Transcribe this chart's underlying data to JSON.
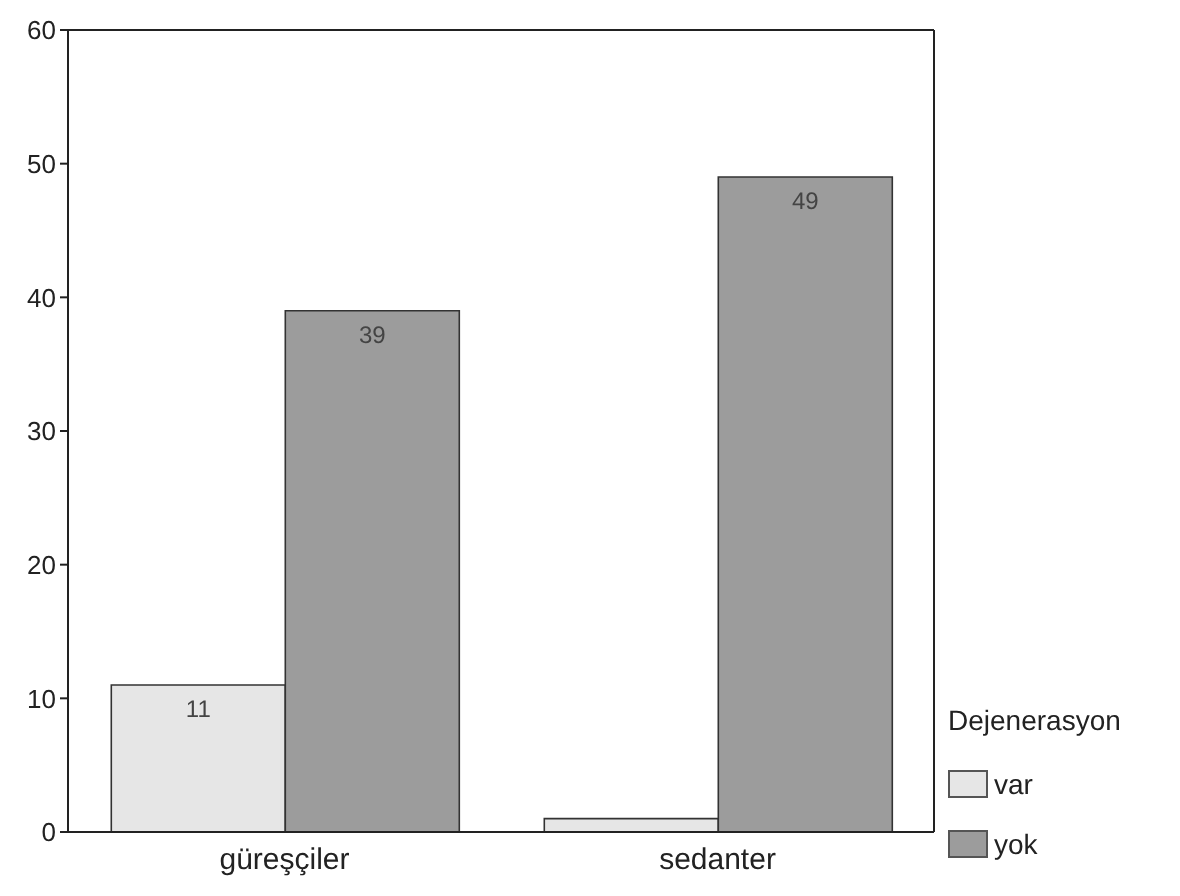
{
  "chart_data": {
    "type": "bar",
    "categories": [
      "güreşçiler",
      "sedanter"
    ],
    "legend_title": "Dejenerasyon",
    "legend": "bottom right",
    "ylim": [
      0,
      60
    ],
    "yticks": [
      0,
      10,
      20,
      30,
      40,
      50,
      60
    ],
    "grid": false,
    "series": [
      {
        "name": "var",
        "color": "#e6e6e6",
        "values": [
          11,
          1
        ],
        "value_labels": [
          "11",
          null
        ]
      },
      {
        "name": "yok",
        "color": "#9c9c9c",
        "values": [
          39,
          49
        ],
        "value_labels": [
          "39",
          "49"
        ]
      }
    ]
  }
}
